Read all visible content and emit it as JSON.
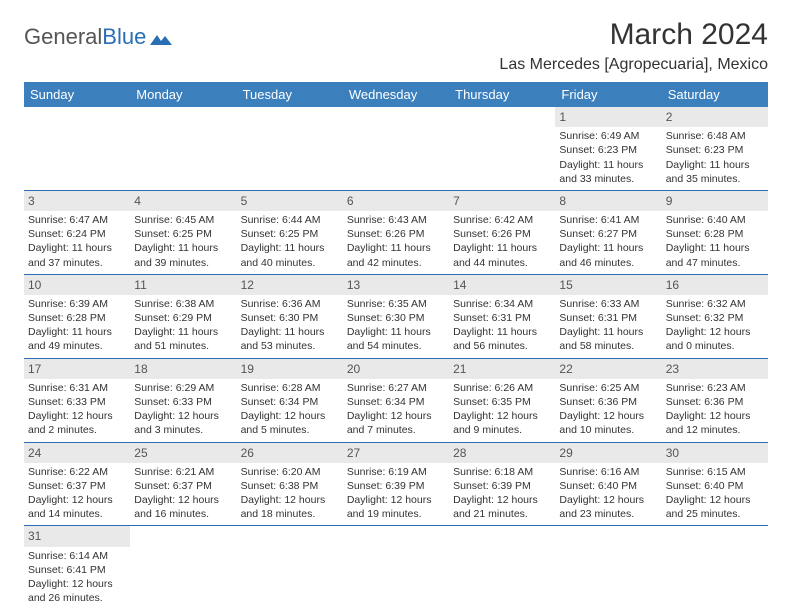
{
  "logo": {
    "text_a": "General",
    "text_b": "Blue"
  },
  "title": "March 2024",
  "location": "Las Mercedes [Agropecuaria], Mexico",
  "colors": {
    "header_bg": "#3b7fbd",
    "header_text": "#ffffff",
    "row_divider": "#2a6fb5",
    "daynum_bg": "#e9e9e9",
    "body_text": "#333333"
  },
  "day_headers": [
    "Sunday",
    "Monday",
    "Tuesday",
    "Wednesday",
    "Thursday",
    "Friday",
    "Saturday"
  ],
  "weeks": [
    [
      null,
      null,
      null,
      null,
      null,
      {
        "n": "1",
        "sr": "6:49 AM",
        "ss": "6:23 PM",
        "dl": "11 hours and 33 minutes."
      },
      {
        "n": "2",
        "sr": "6:48 AM",
        "ss": "6:23 PM",
        "dl": "11 hours and 35 minutes."
      }
    ],
    [
      {
        "n": "3",
        "sr": "6:47 AM",
        "ss": "6:24 PM",
        "dl": "11 hours and 37 minutes."
      },
      {
        "n": "4",
        "sr": "6:45 AM",
        "ss": "6:25 PM",
        "dl": "11 hours and 39 minutes."
      },
      {
        "n": "5",
        "sr": "6:44 AM",
        "ss": "6:25 PM",
        "dl": "11 hours and 40 minutes."
      },
      {
        "n": "6",
        "sr": "6:43 AM",
        "ss": "6:26 PM",
        "dl": "11 hours and 42 minutes."
      },
      {
        "n": "7",
        "sr": "6:42 AM",
        "ss": "6:26 PM",
        "dl": "11 hours and 44 minutes."
      },
      {
        "n": "8",
        "sr": "6:41 AM",
        "ss": "6:27 PM",
        "dl": "11 hours and 46 minutes."
      },
      {
        "n": "9",
        "sr": "6:40 AM",
        "ss": "6:28 PM",
        "dl": "11 hours and 47 minutes."
      }
    ],
    [
      {
        "n": "10",
        "sr": "6:39 AM",
        "ss": "6:28 PM",
        "dl": "11 hours and 49 minutes."
      },
      {
        "n": "11",
        "sr": "6:38 AM",
        "ss": "6:29 PM",
        "dl": "11 hours and 51 minutes."
      },
      {
        "n": "12",
        "sr": "6:36 AM",
        "ss": "6:30 PM",
        "dl": "11 hours and 53 minutes."
      },
      {
        "n": "13",
        "sr": "6:35 AM",
        "ss": "6:30 PM",
        "dl": "11 hours and 54 minutes."
      },
      {
        "n": "14",
        "sr": "6:34 AM",
        "ss": "6:31 PM",
        "dl": "11 hours and 56 minutes."
      },
      {
        "n": "15",
        "sr": "6:33 AM",
        "ss": "6:31 PM",
        "dl": "11 hours and 58 minutes."
      },
      {
        "n": "16",
        "sr": "6:32 AM",
        "ss": "6:32 PM",
        "dl": "12 hours and 0 minutes."
      }
    ],
    [
      {
        "n": "17",
        "sr": "6:31 AM",
        "ss": "6:33 PM",
        "dl": "12 hours and 2 minutes."
      },
      {
        "n": "18",
        "sr": "6:29 AM",
        "ss": "6:33 PM",
        "dl": "12 hours and 3 minutes."
      },
      {
        "n": "19",
        "sr": "6:28 AM",
        "ss": "6:34 PM",
        "dl": "12 hours and 5 minutes."
      },
      {
        "n": "20",
        "sr": "6:27 AM",
        "ss": "6:34 PM",
        "dl": "12 hours and 7 minutes."
      },
      {
        "n": "21",
        "sr": "6:26 AM",
        "ss": "6:35 PM",
        "dl": "12 hours and 9 minutes."
      },
      {
        "n": "22",
        "sr": "6:25 AM",
        "ss": "6:36 PM",
        "dl": "12 hours and 10 minutes."
      },
      {
        "n": "23",
        "sr": "6:23 AM",
        "ss": "6:36 PM",
        "dl": "12 hours and 12 minutes."
      }
    ],
    [
      {
        "n": "24",
        "sr": "6:22 AM",
        "ss": "6:37 PM",
        "dl": "12 hours and 14 minutes."
      },
      {
        "n": "25",
        "sr": "6:21 AM",
        "ss": "6:37 PM",
        "dl": "12 hours and 16 minutes."
      },
      {
        "n": "26",
        "sr": "6:20 AM",
        "ss": "6:38 PM",
        "dl": "12 hours and 18 minutes."
      },
      {
        "n": "27",
        "sr": "6:19 AM",
        "ss": "6:39 PM",
        "dl": "12 hours and 19 minutes."
      },
      {
        "n": "28",
        "sr": "6:18 AM",
        "ss": "6:39 PM",
        "dl": "12 hours and 21 minutes."
      },
      {
        "n": "29",
        "sr": "6:16 AM",
        "ss": "6:40 PM",
        "dl": "12 hours and 23 minutes."
      },
      {
        "n": "30",
        "sr": "6:15 AM",
        "ss": "6:40 PM",
        "dl": "12 hours and 25 minutes."
      }
    ],
    [
      {
        "n": "31",
        "sr": "6:14 AM",
        "ss": "6:41 PM",
        "dl": "12 hours and 26 minutes."
      },
      null,
      null,
      null,
      null,
      null,
      null
    ]
  ],
  "labels": {
    "sunrise": "Sunrise:",
    "sunset": "Sunset:",
    "daylight": "Daylight:"
  }
}
